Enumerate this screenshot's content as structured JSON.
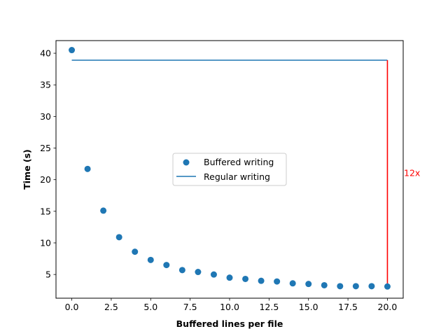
{
  "chart_data": {
    "type": "scatter",
    "xlabel": "Buffered lines per file",
    "ylabel": "Time (s)",
    "xlim": [
      -1.0,
      21.0
    ],
    "ylim": [
      1.25,
      42.0
    ],
    "x_ticks": [
      0.0,
      2.5,
      5.0,
      7.5,
      10.0,
      12.5,
      15.0,
      17.5,
      20.0
    ],
    "x_tick_labels": [
      "0.0",
      "2.5",
      "5.0",
      "7.5",
      "10.0",
      "12.5",
      "15.0",
      "17.5",
      "20.0"
    ],
    "y_ticks": [
      5,
      10,
      15,
      20,
      25,
      30,
      35,
      40
    ],
    "y_tick_labels": [
      "5",
      "10",
      "15",
      "20",
      "25",
      "30",
      "35",
      "40"
    ],
    "grid": false,
    "legend_position": "center",
    "series": [
      {
        "name": "Buffered writing",
        "type": "scatter",
        "color": "#1f77b4",
        "x": [
          0,
          1,
          2,
          3,
          4,
          5,
          6,
          7,
          8,
          9,
          10,
          11,
          12,
          13,
          14,
          15,
          16,
          17,
          18,
          19,
          20
        ],
        "y": [
          40.5,
          21.7,
          15.1,
          10.9,
          8.6,
          7.3,
          6.5,
          5.7,
          5.4,
          5.0,
          4.5,
          4.3,
          4.0,
          3.9,
          3.6,
          3.5,
          3.3,
          3.15,
          3.15,
          3.15,
          3.1
        ]
      },
      {
        "name": "Regular writing",
        "type": "line",
        "color": "#1f77b4",
        "x": [
          0,
          20
        ],
        "y": [
          38.9,
          38.9
        ]
      }
    ],
    "annotations": [
      {
        "type": "vline",
        "x": 20,
        "y_from": 3.1,
        "y_to": 38.9,
        "color": "#ff0000",
        "label": "12x"
      }
    ]
  }
}
